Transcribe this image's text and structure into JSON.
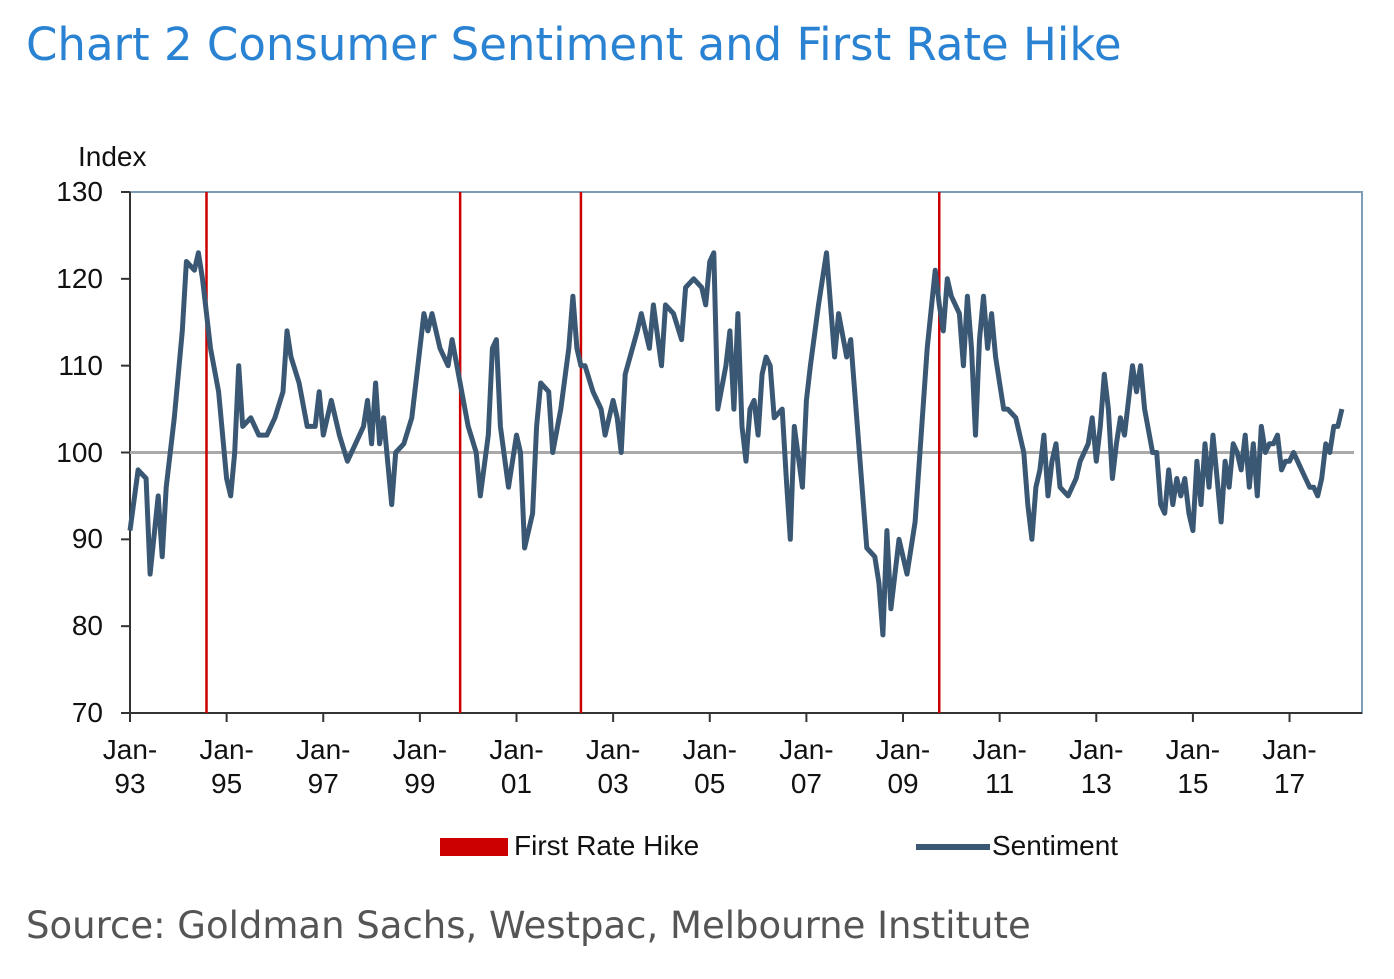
{
  "chart_data": {
    "type": "line",
    "title": "Chart 2 Consumer Sentiment and First Rate Hike",
    "ylabel": "Index",
    "source": "Source:  Goldman Sachs, Westpac, Melbourne Institute",
    "ylim": [
      70,
      130
    ],
    "yticks": [
      70,
      80,
      90,
      100,
      110,
      120,
      130
    ],
    "xlim": [
      "Jan-93",
      "Jul-18"
    ],
    "xticks": [
      {
        "value": "Jan-93",
        "label": "Jan-\n93"
      },
      {
        "value": "Jan-95",
        "label": "Jan-\n95"
      },
      {
        "value": "Jan-97",
        "label": "Jan-\n97"
      },
      {
        "value": "Jan-99",
        "label": "Jan-\n99"
      },
      {
        "value": "Jan-01",
        "label": "Jan-\n01"
      },
      {
        "value": "Jan-03",
        "label": "Jan-\n03"
      },
      {
        "value": "Jan-05",
        "label": "Jan-\n05"
      },
      {
        "value": "Jan-07",
        "label": "Jan-\n07"
      },
      {
        "value": "Jan-09",
        "label": "Jan-\n09"
      },
      {
        "value": "Jan-11",
        "label": "Jan-\n11"
      },
      {
        "value": "Jan-13",
        "label": "Jan-\n13"
      },
      {
        "value": "Jan-15",
        "label": "Jan-\n15"
      },
      {
        "value": "Jan-17",
        "label": "Jan-\n17"
      }
    ],
    "reference_line": 100,
    "series": [
      {
        "name": "First Rate Hike",
        "color": "#cc0000",
        "type": "vline",
        "x": [
          "Aug-94",
          "Nov-99",
          "May-02",
          "Oct-09"
        ]
      },
      {
        "name": "Sentiment",
        "color": "#3a5874",
        "x": [
          "Jan-93",
          "Mar-93",
          "May-93",
          "Jun-93",
          "Aug-93",
          "Sep-93",
          "Oct-93",
          "Dec-93",
          "Feb-94",
          "Mar-94",
          "May-94",
          "Jun-94",
          "Jul-94",
          "Sep-94",
          "Nov-94",
          "Jan-95",
          "Feb-95",
          "Mar-95",
          "Apr-95",
          "May-95",
          "Jul-95",
          "Sep-95",
          "Nov-95",
          "Jan-96",
          "Mar-96",
          "Apr-96",
          "May-96",
          "Jul-96",
          "Sep-96",
          "Nov-96",
          "Dec-96",
          "Jan-97",
          "Mar-97",
          "May-97",
          "Jul-97",
          "Sep-97",
          "Nov-97",
          "Dec-97",
          "Jan-98",
          "Feb-98",
          "Mar-98",
          "Apr-98",
          "Jun-98",
          "Jul-98",
          "Sep-98",
          "Nov-98",
          "Jan-99",
          "Feb-99",
          "Mar-99",
          "Apr-99",
          "Jun-99",
          "Aug-99",
          "Sep-99",
          "Nov-99",
          "Jan-00",
          "Mar-00",
          "Apr-00",
          "Jun-00",
          "Jul-00",
          "Aug-00",
          "Sep-00",
          "Nov-00",
          "Jan-01",
          "Feb-01",
          "Mar-01",
          "May-01",
          "Jun-01",
          "Jul-01",
          "Sep-01",
          "Oct-01",
          "Dec-01",
          "Feb-02",
          "Mar-02",
          "Apr-02",
          "May-02",
          "Jun-02",
          "Aug-02",
          "Oct-02",
          "Nov-02",
          "Jan-03",
          "Feb-03",
          "Mar-03",
          "Apr-03",
          "Jul-03",
          "Aug-03",
          "Oct-03",
          "Nov-03",
          "Jan-04",
          "Feb-04",
          "Apr-04",
          "Jun-04",
          "Jul-04",
          "Sep-04",
          "Nov-04",
          "Dec-04",
          "Jan-05",
          "Feb-05",
          "Mar-05",
          "May-05",
          "Jun-05",
          "Jul-05",
          "Aug-05",
          "Sep-05",
          "Oct-05",
          "Nov-05",
          "Dec-05",
          "Jan-06",
          "Feb-06",
          "Mar-06",
          "Apr-06",
          "May-06",
          "Jul-06",
          "Aug-06",
          "Sep-06",
          "Oct-06",
          "Dec-06",
          "Jan-07",
          "Feb-07",
          "Apr-07",
          "Jun-07",
          "Aug-07",
          "Sep-07",
          "Nov-07",
          "Dec-07",
          "Feb-08",
          "Apr-08",
          "Jun-08",
          "Jul-08",
          "Aug-08",
          "Sep-08",
          "Oct-08",
          "Dec-08",
          "Feb-09",
          "Apr-09",
          "Jul-09",
          "Sep-09",
          "Oct-09",
          "Nov-09",
          "Dec-09",
          "Jan-10",
          "Feb-10",
          "Mar-10",
          "Apr-10",
          "May-10",
          "Jun-10",
          "Jul-10",
          "Aug-10",
          "Sep-10",
          "Oct-10",
          "Nov-10",
          "Dec-10",
          "Jan-11",
          "Feb-11",
          "Mar-11",
          "May-11",
          "Jul-11",
          "Aug-11",
          "Sep-11",
          "Oct-11",
          "Nov-11",
          "Dec-11",
          "Jan-12",
          "Feb-12",
          "Mar-12",
          "Apr-12",
          "Jun-12",
          "Aug-12",
          "Sep-12",
          "Nov-12",
          "Dec-12",
          "Jan-13",
          "Feb-13",
          "Mar-13",
          "Apr-13",
          "May-13",
          "Jun-13",
          "Jul-13",
          "Aug-13",
          "Sep-13",
          "Oct-13",
          "Nov-13",
          "Dec-13",
          "Jan-14",
          "Mar-14",
          "Apr-14",
          "May-14",
          "Jun-14",
          "Jul-14",
          "Aug-14",
          "Sep-14",
          "Oct-14",
          "Nov-14",
          "Dec-14",
          "Jan-15",
          "Feb-15",
          "Mar-15",
          "Apr-15",
          "May-15",
          "Jun-15",
          "Jul-15",
          "Aug-15",
          "Sep-15",
          "Oct-15",
          "Nov-15",
          "Dec-15",
          "Jan-16",
          "Feb-16",
          "Mar-16",
          "Apr-16",
          "May-16",
          "Jun-16",
          "Jul-16",
          "Aug-16",
          "Sep-16",
          "Oct-16",
          "Nov-16",
          "Dec-16",
          "Jan-17",
          "Feb-17",
          "Mar-17",
          "Apr-17",
          "May-17",
          "Jun-17",
          "Jul-17",
          "Aug-17",
          "Sep-17",
          "Oct-17",
          "Nov-17",
          "Dec-17",
          "Jan-18",
          "Feb-18"
        ],
        "values": [
          91,
          98,
          97,
          86,
          95,
          88,
          96,
          104,
          114,
          122,
          121,
          123,
          120,
          112,
          107,
          97,
          95,
          100,
          110,
          103,
          104,
          102,
          102,
          104,
          107,
          114,
          111,
          108,
          103,
          103,
          107,
          102,
          106,
          102,
          99,
          101,
          103,
          106,
          101,
          108,
          101,
          104,
          94,
          100,
          101,
          104,
          112,
          116,
          114,
          116,
          112,
          110,
          113,
          108,
          103,
          100,
          95,
          102,
          112,
          113,
          103,
          96,
          102,
          100,
          89,
          93,
          103,
          108,
          107,
          100,
          105,
          112,
          118,
          112,
          110,
          110,
          107,
          105,
          102,
          106,
          104,
          100,
          109,
          114,
          116,
          112,
          117,
          110,
          117,
          116,
          113,
          119,
          120,
          119,
          117,
          122,
          123,
          105,
          110,
          114,
          105,
          116,
          103,
          99,
          105,
          106,
          102,
          109,
          111,
          110,
          104,
          105,
          97,
          90,
          103,
          96,
          106,
          110,
          117,
          123,
          111,
          116,
          111,
          113,
          101,
          89,
          88,
          85,
          79,
          91,
          82,
          90,
          86,
          92,
          112,
          121,
          117,
          114,
          120,
          118,
          117,
          116,
          110,
          118,
          112,
          102,
          113,
          118,
          112,
          116,
          111,
          108,
          105,
          105,
          104,
          100,
          94,
          90,
          96,
          98,
          102,
          95,
          99,
          101,
          96,
          95,
          97,
          99,
          101,
          104,
          99,
          103,
          109,
          105,
          97,
          101,
          104,
          102,
          106,
          110,
          107,
          110,
          105,
          100,
          100,
          94,
          93,
          98,
          94,
          97,
          95,
          97,
          93,
          91,
          99,
          94,
          101,
          96,
          102,
          97,
          92,
          99,
          96,
          101,
          100,
          98,
          102,
          96,
          101,
          95,
          103,
          100,
          101,
          101,
          102,
          98,
          99,
          99,
          100,
          99,
          98,
          97,
          96,
          96,
          95,
          97,
          101,
          100,
          103,
          103,
          105
        ]
      }
    ]
  }
}
